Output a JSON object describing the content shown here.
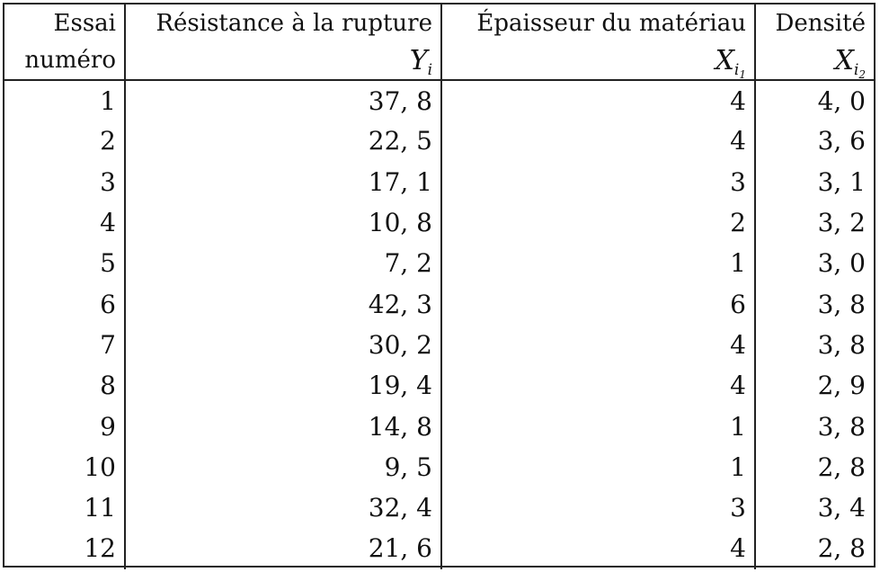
{
  "table": {
    "header_row1": [
      "Essai",
      "Résistance à la rupture",
      "Épaisseur du matériau",
      "Densité"
    ],
    "header_row2": {
      "col1": "numéro",
      "col2_var": "Y",
      "col2_sub": "i",
      "col3_var": "X",
      "col3_sub": "i",
      "col3_subsub": "1",
      "col4_var": "X",
      "col4_sub": "i",
      "col4_subsub": "2"
    },
    "rows": [
      [
        "1",
        "37, 8",
        "4",
        "4, 0"
      ],
      [
        "2",
        "22, 5",
        "4",
        "3, 6"
      ],
      [
        "3",
        "17, 1",
        "3",
        "3, 1"
      ],
      [
        "4",
        "10, 8",
        "2",
        "3, 2"
      ],
      [
        "5",
        "7, 2",
        "1",
        "3, 0"
      ],
      [
        "6",
        "42, 3",
        "6",
        "3, 8"
      ],
      [
        "7",
        "30, 2",
        "4",
        "3, 8"
      ],
      [
        "8",
        "19, 4",
        "4",
        "2, 9"
      ],
      [
        "9",
        "14, 8",
        "1",
        "3, 8"
      ],
      [
        "10",
        "9, 5",
        "1",
        "2, 8"
      ],
      [
        "11",
        "32, 4",
        "3",
        "3, 4"
      ],
      [
        "12",
        "21, 6",
        "4",
        "2, 8"
      ]
    ]
  }
}
